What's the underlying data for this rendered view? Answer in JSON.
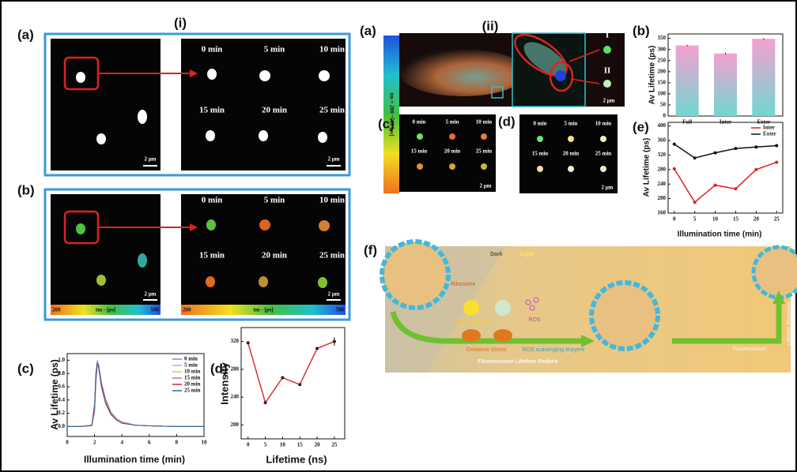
{
  "figure": {
    "part_i": "(i)",
    "part_ii": "(ii)",
    "panel_a": "(a)",
    "panel_b": "(b)",
    "panel_c": "(c)",
    "panel_d": "(d)",
    "panel_e": "(e)",
    "panel_f": "(f)",
    "times": [
      "0 min",
      "5 min",
      "10 min",
      "15 min",
      "20 min",
      "25 min"
    ],
    "scale_bar": "2 μm",
    "colorbar": {
      "min": "200",
      "label": "tm - [ps]",
      "max": "500"
    },
    "vertical_colorbar": "tm = 200 ~500 [ps]",
    "region_1": "I",
    "region_2": "II"
  },
  "diagram": {
    "dark": "Dark",
    "light": "Light",
    "ribosome": "Ribosome",
    "light_irradiation": "Light irradiation",
    "ros": "ROS",
    "oxidative_stress": "Oxidative Stress",
    "ros_enzyme": "ROS scavenging enzyme",
    "reduce": "Fluorescence Lifetime Reduce",
    "fluorescence": "Fluorescence",
    "recovery": "Lifetime Recovery"
  },
  "chart_data": [
    {
      "type": "line",
      "xlabel": "Illumination time (min)",
      "ylabel": "Av Lifetime (ps)",
      "x": [
        0,
        1,
        1.8,
        2.0,
        2.1,
        2.2,
        2.3,
        2.5,
        2.8,
        3.2,
        3.6,
        4,
        5,
        6,
        8,
        10
      ],
      "series": [
        {
          "name": "0 min",
          "color": "#9a7fd8",
          "values": [
            0,
            0,
            0.02,
            0.35,
            0.82,
            1.0,
            0.9,
            0.6,
            0.36,
            0.18,
            0.1,
            0.05,
            0.02,
            0.01,
            0,
            0
          ]
        },
        {
          "name": "5 min",
          "color": "#7fc8e8",
          "values": [
            0,
            0,
            0.02,
            0.3,
            0.78,
            0.98,
            0.92,
            0.62,
            0.38,
            0.2,
            0.11,
            0.06,
            0.02,
            0.01,
            0,
            0
          ]
        },
        {
          "name": "10 min",
          "color": "#b8d840",
          "values": [
            0,
            0,
            0.01,
            0.25,
            0.7,
            0.95,
            0.93,
            0.65,
            0.4,
            0.21,
            0.12,
            0.06,
            0.02,
            0.01,
            0,
            0
          ]
        },
        {
          "name": "15 min",
          "color": "#e060a0",
          "values": [
            0,
            0,
            0.01,
            0.22,
            0.66,
            0.92,
            0.94,
            0.67,
            0.42,
            0.22,
            0.12,
            0.07,
            0.02,
            0.01,
            0,
            0
          ]
        },
        {
          "name": "20 min",
          "color": "#c03030",
          "values": [
            0,
            0,
            0.02,
            0.32,
            0.8,
            0.97,
            0.88,
            0.6,
            0.35,
            0.18,
            0.1,
            0.05,
            0.02,
            0.01,
            0,
            0
          ]
        },
        {
          "name": "25 min",
          "color": "#2070a0",
          "values": [
            0,
            0,
            0.02,
            0.28,
            0.74,
            0.96,
            0.9,
            0.63,
            0.37,
            0.19,
            0.1,
            0.05,
            0.02,
            0.01,
            0,
            0
          ]
        }
      ],
      "xlim": [
        0,
        10
      ],
      "xticks": [
        0,
        2,
        4,
        6,
        8,
        10
      ],
      "ylim": [
        -0.15,
        1.1
      ],
      "yticks": [
        {
          "value": 0,
          "label": "0.0"
        },
        0.2,
        0.4,
        0.6,
        0.8,
        {
          "value": 1,
          "label": "1.0"
        }
      ],
      "legend": "upper right"
    },
    {
      "type": "line",
      "xlabel": "Lifetime (ns)",
      "ylabel": "Intensity",
      "x": [
        0,
        5,
        10,
        15,
        20,
        25
      ],
      "values": [
        318,
        232,
        268,
        258,
        310,
        320
      ],
      "errors": [
        null,
        null,
        null,
        null,
        null,
        6
      ],
      "color": "#e03030",
      "marker_color": "#222222",
      "xlim": [
        -2,
        28
      ],
      "xticks": [
        0,
        5,
        10,
        15,
        20,
        25
      ],
      "ylim": [
        180,
        340
      ],
      "yticks": [
        200,
        240,
        280,
        320
      ]
    },
    {
      "type": "bar",
      "ylabel": "Av Lifetime (ps)",
      "categories": [
        "Full",
        "Inter",
        "Exter"
      ],
      "values": [
        318,
        282,
        348
      ],
      "errors": [
        3,
        3,
        3
      ],
      "gradient": [
        "#f4a0d0",
        "#70d8d0"
      ],
      "ylim": [
        0,
        370
      ],
      "yticks": [
        0,
        50,
        100,
        150,
        200,
        250,
        300,
        350
      ]
    },
    {
      "type": "line",
      "xlabel": "Illumination time (min)",
      "ylabel": "Av Lifetime (ps)",
      "x": [
        0,
        5,
        10,
        15,
        20,
        25
      ],
      "series": [
        {
          "name": "Inter",
          "color": "#e02020",
          "values": [
            282,
            190,
            237,
            227,
            280,
            300
          ]
        },
        {
          "name": "Exter",
          "color": "#111111",
          "values": [
            350,
            312,
            326,
            338,
            342,
            346
          ]
        }
      ],
      "xlim": [
        -1.5,
        26.5
      ],
      "xticks": [
        0,
        5,
        10,
        15,
        20,
        25
      ],
      "ylim": [
        160,
        410
      ],
      "yticks": [
        160,
        200,
        240,
        280,
        320,
        360,
        400
      ],
      "legend": "upper right"
    }
  ]
}
